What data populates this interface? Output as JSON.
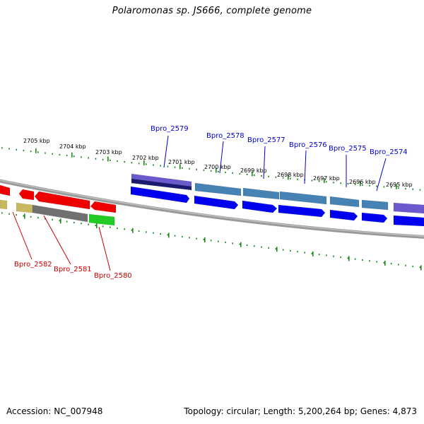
{
  "title": "Polaromonas sp. JS666, complete genome",
  "footer": {
    "accession": "Accession: NC_007948",
    "topology": "Topology: circular; Length: 5,200,264 bp; Genes: 4,873"
  },
  "scale_labels": [
    "2705 kbp",
    "2704 kbp",
    "2703 kbp",
    "2702 kbp",
    "2701 kbp",
    "2700 kbp",
    "2699 kbp",
    "2698 kbp",
    "2697 kbp",
    "2696 kbp",
    "2695 kbp"
  ],
  "upper_gene_labels": [
    "Bpro_2579",
    "Bpro_2578",
    "Bpro_2577",
    "Bpro_2576",
    "Bpro_2575",
    "Bpro_2574"
  ],
  "lower_gene_labels": [
    "Bpro_2582",
    "Bpro_2581",
    "Bpro_2580"
  ],
  "colors": {
    "tick": "#1a8a1a",
    "backbone": "#808080",
    "blue_gene": "#0000ee",
    "steel_gene": "#4682b4",
    "purple_gene": "#6a5acd",
    "red_gene": "#ee0000",
    "gray_gene": "#707070",
    "green_gene": "#22cc22",
    "khaki_gene": "#c8b860",
    "upper_label": "#0000cc",
    "lower_label": "#cc0000"
  }
}
